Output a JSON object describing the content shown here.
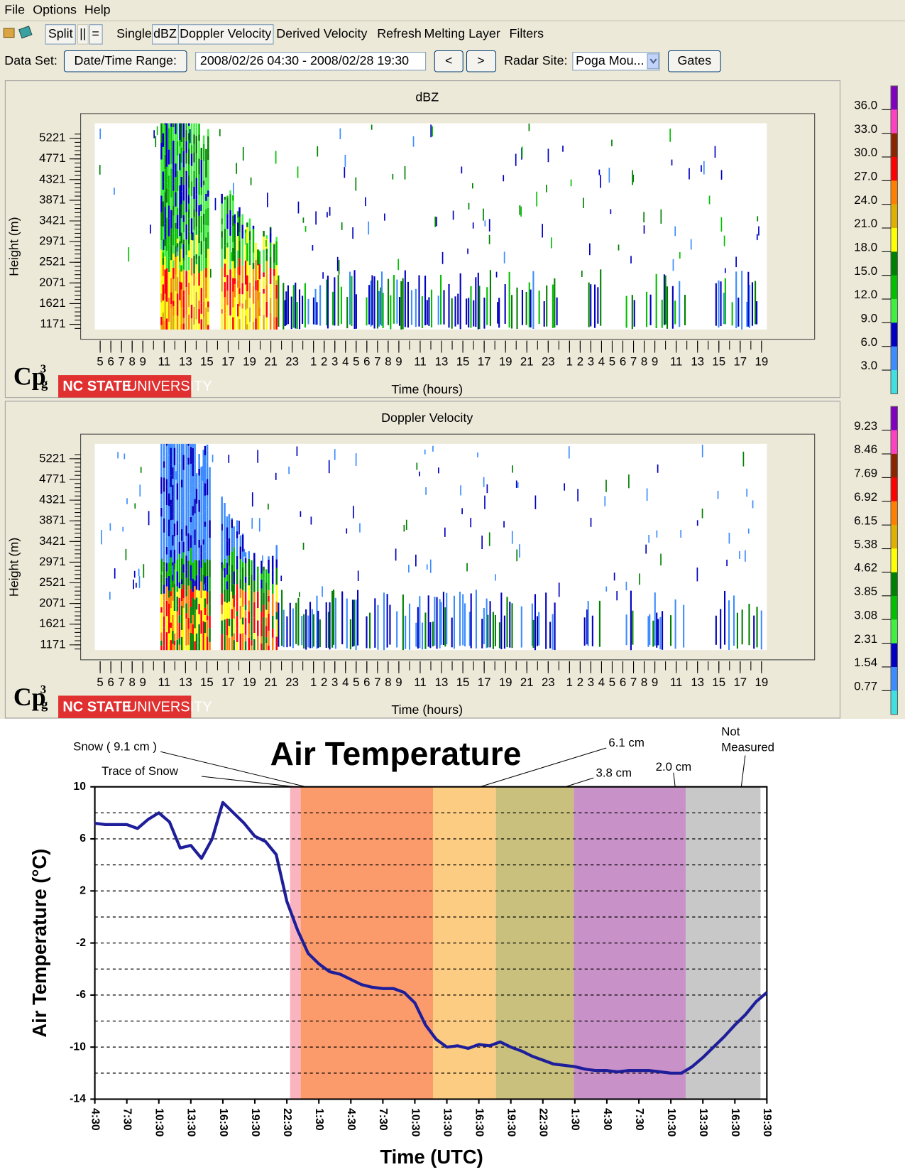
{
  "menu": [
    "File",
    "Options",
    "Help"
  ],
  "toolbar": [
    "Split",
    "||",
    "=",
    "Single",
    "dBZ",
    "Doppler Velocity",
    "Derived Velocity",
    "Refresh",
    "Melting Layer",
    "Filters"
  ],
  "dataset": {
    "label": "Data Set:",
    "range_button": "Date/Time Range:",
    "range": "2008/02/26 04:30 - 2008/02/28 19:30",
    "prev": "<",
    "next": ">",
    "site_label": "Radar Site:",
    "site": "Poga Mou...",
    "gates": "Gates"
  },
  "chart_data": [
    {
      "type": "heatmap",
      "title": "dBZ",
      "y_label": "Height (m)",
      "x_label": "Time (hours)",
      "xlim": [
        0,
        63
      ],
      "xticks": [
        {
          "value": 0.5,
          "label": "5"
        },
        {
          "value": 1.5,
          "label": "6"
        },
        {
          "value": 2.5,
          "label": "7"
        },
        {
          "value": 3.5,
          "label": "8"
        },
        {
          "value": 4.5,
          "label": "9"
        },
        {
          "value": 6.5,
          "label": "11"
        },
        {
          "value": 8.5,
          "label": "13"
        },
        {
          "value": 10.5,
          "label": "15"
        },
        {
          "value": 12.5,
          "label": "17"
        },
        {
          "value": 14.5,
          "label": "19"
        },
        {
          "value": 16.5,
          "label": "21"
        },
        {
          "value": 18.5,
          "label": "23"
        },
        {
          "value": 20.5,
          "label": "1"
        },
        {
          "value": 21.5,
          "label": "2"
        },
        {
          "value": 22.5,
          "label": "3"
        },
        {
          "value": 23.5,
          "label": "4"
        },
        {
          "value": 24.5,
          "label": "5"
        },
        {
          "value": 25.5,
          "label": "6"
        },
        {
          "value": 26.5,
          "label": "7"
        },
        {
          "value": 27.5,
          "label": "8"
        },
        {
          "value": 28.5,
          "label": "9"
        },
        {
          "value": 30.5,
          "label": "11"
        },
        {
          "value": 32.5,
          "label": "13"
        },
        {
          "value": 34.5,
          "label": "15"
        },
        {
          "value": 36.5,
          "label": "17"
        },
        {
          "value": 38.5,
          "label": "19"
        },
        {
          "value": 40.5,
          "label": "21"
        },
        {
          "value": 42.5,
          "label": "23"
        },
        {
          "value": 44.5,
          "label": "1"
        },
        {
          "value": 45.5,
          "label": "2"
        },
        {
          "value": 46.5,
          "label": "3"
        },
        {
          "value": 47.5,
          "label": "4"
        },
        {
          "value": 48.5,
          "label": "5"
        },
        {
          "value": 49.5,
          "label": "6"
        },
        {
          "value": 50.5,
          "label": "7"
        },
        {
          "value": 51.5,
          "label": "8"
        },
        {
          "value": 52.5,
          "label": "9"
        },
        {
          "value": 54.5,
          "label": "11"
        },
        {
          "value": 56.5,
          "label": "13"
        },
        {
          "value": 58.5,
          "label": "15"
        },
        {
          "value": 60.5,
          "label": "17"
        },
        {
          "value": 62.5,
          "label": "19"
        }
      ],
      "ylim": [
        1057,
        5546
      ],
      "yticks": [
        1171,
        1621,
        2071,
        2521,
        2971,
        3421,
        3871,
        4321,
        4771,
        5221
      ],
      "colorbar": {
        "clim": [
          0,
          39
        ],
        "ticks": [
          {
            "value": 36,
            "label": "36.0"
          },
          {
            "value": 33,
            "label": "33.0"
          },
          {
            "value": 30,
            "label": "30.0"
          },
          {
            "value": 27,
            "label": "27.0"
          },
          {
            "value": 24,
            "label": "24.0"
          },
          {
            "value": 21,
            "label": "21.0"
          },
          {
            "value": 18,
            "label": "18.0"
          },
          {
            "value": 15,
            "label": "15.0"
          },
          {
            "value": 12,
            "label": "12.0"
          },
          {
            "value": 9,
            "label": "9.0"
          },
          {
            "value": 6,
            "label": "6.0"
          },
          {
            "value": 3,
            "label": "3.0"
          }
        ],
        "colors": [
          "#8000c0",
          "#ff40c0",
          "#8b2500",
          "#ff0000",
          "#ff8000",
          "#e0b000",
          "#ffff00",
          "#008000",
          "#00c000",
          "#40f040",
          "#0000c0",
          "#3c8cff",
          "#40e0e0"
        ]
      },
      "logo": {
        "text": "Cp",
        "sup": "3",
        "sub": "g",
        "org_bold": "NC STATE",
        "org": "UNIVERSITY"
      }
    },
    {
      "type": "heatmap",
      "title": "Doppler Velocity",
      "y_label": "Height (m)",
      "x_label": "Time (hours)",
      "xlim": [
        0,
        63
      ],
      "xticks": [
        {
          "value": 0.5,
          "label": "5"
        },
        {
          "value": 1.5,
          "label": "6"
        },
        {
          "value": 2.5,
          "label": "7"
        },
        {
          "value": 3.5,
          "label": "8"
        },
        {
          "value": 4.5,
          "label": "9"
        },
        {
          "value": 6.5,
          "label": "11"
        },
        {
          "value": 8.5,
          "label": "13"
        },
        {
          "value": 10.5,
          "label": "15"
        },
        {
          "value": 12.5,
          "label": "17"
        },
        {
          "value": 14.5,
          "label": "19"
        },
        {
          "value": 16.5,
          "label": "21"
        },
        {
          "value": 18.5,
          "label": "23"
        },
        {
          "value": 20.5,
          "label": "1"
        },
        {
          "value": 21.5,
          "label": "2"
        },
        {
          "value": 22.5,
          "label": "3"
        },
        {
          "value": 23.5,
          "label": "4"
        },
        {
          "value": 24.5,
          "label": "5"
        },
        {
          "value": 25.5,
          "label": "6"
        },
        {
          "value": 26.5,
          "label": "7"
        },
        {
          "value": 27.5,
          "label": "8"
        },
        {
          "value": 28.5,
          "label": "9"
        },
        {
          "value": 30.5,
          "label": "11"
        },
        {
          "value": 32.5,
          "label": "13"
        },
        {
          "value": 34.5,
          "label": "15"
        },
        {
          "value": 36.5,
          "label": "17"
        },
        {
          "value": 38.5,
          "label": "19"
        },
        {
          "value": 40.5,
          "label": "21"
        },
        {
          "value": 42.5,
          "label": "23"
        },
        {
          "value": 44.5,
          "label": "1"
        },
        {
          "value": 45.5,
          "label": "2"
        },
        {
          "value": 46.5,
          "label": "3"
        },
        {
          "value": 47.5,
          "label": "4"
        },
        {
          "value": 48.5,
          "label": "5"
        },
        {
          "value": 49.5,
          "label": "6"
        },
        {
          "value": 50.5,
          "label": "7"
        },
        {
          "value": 51.5,
          "label": "8"
        },
        {
          "value": 52.5,
          "label": "9"
        },
        {
          "value": 54.5,
          "label": "11"
        },
        {
          "value": 56.5,
          "label": "13"
        },
        {
          "value": 58.5,
          "label": "15"
        },
        {
          "value": 60.5,
          "label": "17"
        },
        {
          "value": 62.5,
          "label": "19"
        }
      ],
      "ylim": [
        1057,
        5546
      ],
      "yticks": [
        1171,
        1621,
        2071,
        2521,
        2971,
        3421,
        3871,
        4321,
        4771,
        5221
      ],
      "colorbar": {
        "clim": [
          0,
          10
        ],
        "ticks": [
          9.23,
          8.46,
          7.69,
          6.92,
          6.15,
          5.38,
          4.62,
          3.85,
          3.08,
          2.31,
          1.54,
          0.77
        ],
        "colors": [
          "#8000c0",
          "#ff40c0",
          "#8b2500",
          "#ff0000",
          "#ff8000",
          "#e0b000",
          "#ffff00",
          "#008000",
          "#00c000",
          "#40f040",
          "#0000c0",
          "#3c8cff",
          "#40e0e0"
        ]
      },
      "logo": {
        "text": "Cp",
        "sup": "3",
        "sub": "g",
        "org_bold": "NC STATE",
        "org": "UNIVERSITY"
      }
    },
    {
      "type": "line",
      "title": "Air Temperature",
      "x_label": "Time (UTC)",
      "y_label": "Air Temperature (°C)",
      "x": [
        0,
        1,
        2,
        3,
        4,
        5,
        6,
        7,
        8,
        9,
        10,
        11,
        12,
        13,
        14,
        15,
        16,
        17,
        18,
        19,
        20,
        21,
        22,
        23,
        24,
        25,
        26,
        27,
        28,
        29,
        30,
        31,
        32,
        33,
        34,
        35,
        36,
        37,
        38,
        39,
        40,
        41,
        42,
        43,
        44,
        45,
        46,
        47,
        48,
        49,
        50,
        51,
        52,
        53,
        54,
        55,
        56,
        57,
        58,
        59,
        60,
        61,
        62,
        63
      ],
      "values": [
        7.2,
        7.1,
        7.1,
        7.1,
        6.8,
        7.5,
        8.0,
        7.3,
        5.3,
        5.5,
        4.5,
        6.0,
        8.8,
        8.0,
        7.2,
        6.2,
        5.8,
        4.8,
        1.2,
        -1.0,
        -2.8,
        -3.6,
        -4.2,
        -4.4,
        -4.8,
        -5.2,
        -5.4,
        -5.5,
        -5.5,
        -5.8,
        -6.6,
        -8.3,
        -9.4,
        -10.0,
        -9.9,
        -10.1,
        -9.8,
        -9.9,
        -9.6,
        -10.0,
        -10.3,
        -10.7,
        -11.0,
        -11.3,
        -11.4,
        -11.5,
        -11.7,
        -11.8,
        -11.8,
        -11.9,
        -11.8,
        -11.8,
        -11.8,
        -11.9,
        -12.0,
        -12.0,
        -11.5,
        -10.8,
        -10.0,
        -9.2,
        -8.3,
        -7.5,
        -6.5,
        -5.8
      ],
      "color": "#1e1e9a",
      "xlim": [
        0,
        63
      ],
      "xticks": [
        {
          "value": 0,
          "label": "4:30"
        },
        {
          "value": 3,
          "label": "7:30"
        },
        {
          "value": 6,
          "label": "10:30"
        },
        {
          "value": 9,
          "label": "13:30"
        },
        {
          "value": 12,
          "label": "16:30"
        },
        {
          "value": 15,
          "label": "19:30"
        },
        {
          "value": 18,
          "label": "22:30"
        },
        {
          "value": 21,
          "label": "1:30"
        },
        {
          "value": 24,
          "label": "4:30"
        },
        {
          "value": 27,
          "label": "7:30"
        },
        {
          "value": 30,
          "label": "10:30"
        },
        {
          "value": 33,
          "label": "13:30"
        },
        {
          "value": 36,
          "label": "16:30"
        },
        {
          "value": 39,
          "label": "19:30"
        },
        {
          "value": 42,
          "label": "22:30"
        },
        {
          "value": 45,
          "label": "1:30"
        },
        {
          "value": 48,
          "label": "4:30"
        },
        {
          "value": 51,
          "label": "7:30"
        },
        {
          "value": 54,
          "label": "10:30"
        },
        {
          "value": 57,
          "label": "13:30"
        },
        {
          "value": 60,
          "label": "16:30"
        },
        {
          "value": 63,
          "label": "19:30"
        }
      ],
      "ylim": [
        -14,
        10
      ],
      "yticks": [
        10,
        6,
        2,
        -2,
        -6,
        -10,
        -14
      ],
      "minor_grid": [
        8,
        4,
        0,
        -4,
        -8,
        -12
      ],
      "grid": true,
      "bands": [
        {
          "start": 18.3,
          "end": 19.3,
          "color": "#f9b4c0"
        },
        {
          "start": 19.3,
          "end": 31.7,
          "color": "#fb9b6b"
        },
        {
          "start": 31.7,
          "end": 37.6,
          "color": "#fccc82"
        },
        {
          "start": 37.6,
          "end": 44.9,
          "color": "#c8c07c"
        },
        {
          "start": 44.9,
          "end": 55.4,
          "color": "#c891c8"
        },
        {
          "start": 55.4,
          "end": 62.4,
          "color": "#c8c8c8"
        }
      ],
      "annotations": [
        {
          "lines": [
            "Snow ( 9.1 cm )"
          ],
          "x": 19.8
        },
        {
          "lines": [
            "Trace of Snow"
          ],
          "x": 18.8
        },
        {
          "lines": [
            "6.1 cm"
          ],
          "x": 36.1
        },
        {
          "lines": [
            "3.8 cm"
          ],
          "x": 44.1
        },
        {
          "lines": [
            "2.0 cm"
          ],
          "x": 54.4
        },
        {
          "lines": [
            "Not",
            "Measured"
          ],
          "x": 60.6
        }
      ]
    }
  ]
}
